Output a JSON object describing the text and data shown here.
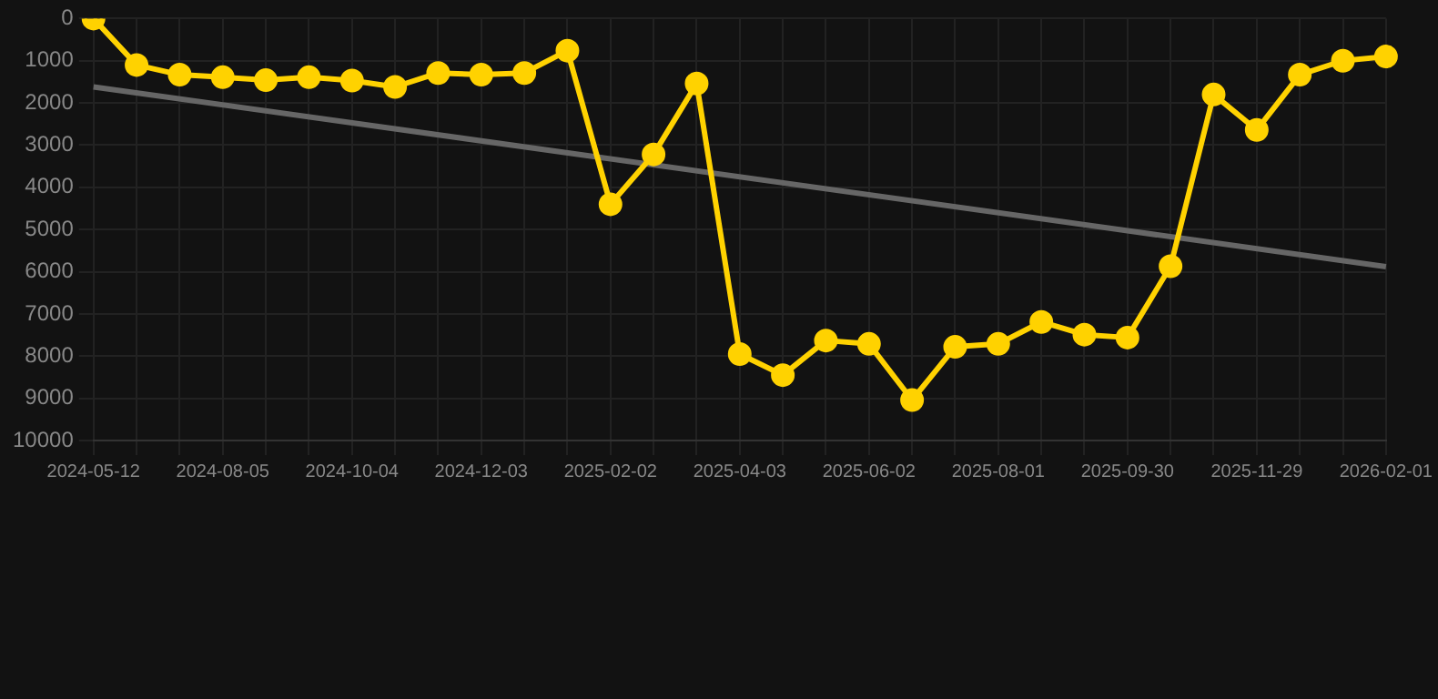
{
  "chart_data": {
    "type": "line",
    "categories": [
      "2024-05-12",
      null,
      null,
      "2024-08-05",
      null,
      null,
      "2024-10-04",
      null,
      null,
      "2024-12-03",
      null,
      null,
      "2025-02-02",
      null,
      null,
      "2025-04-03",
      null,
      null,
      "2025-06-02",
      null,
      null,
      "2025-08-01",
      null,
      null,
      "2025-09-30",
      null,
      null,
      "2025-11-29",
      null,
      null,
      "2026-02-01"
    ],
    "series": [
      {
        "color": "#ffd200",
        "values": [
          0,
          1100,
          1330,
          1390,
          1460,
          1390,
          1470,
          1620,
          1290,
          1330,
          1290,
          760,
          4400,
          3220,
          1540,
          7950,
          8450,
          7630,
          7710,
          9040,
          7780,
          7710,
          7190,
          7490,
          7560,
          5870,
          1800,
          2640,
          1330,
          1000,
          900
        ]
      },
      {
        "type": "line",
        "color": "#666666",
        "marker": "none",
        "values": [
          1620,
          null,
          null,
          null,
          null,
          null,
          null,
          null,
          null,
          null,
          null,
          null,
          null,
          null,
          null,
          null,
          null,
          null,
          null,
          null,
          null,
          null,
          null,
          null,
          null,
          null,
          null,
          null,
          null,
          null,
          5880
        ]
      }
    ],
    "ylim": [
      10000,
      0
    ],
    "yticks": [
      0,
      1000,
      2000,
      3000,
      4000,
      5000,
      6000,
      7000,
      8000,
      9000,
      10000
    ],
    "grid": true,
    "legend": false,
    "marker": "circle"
  }
}
